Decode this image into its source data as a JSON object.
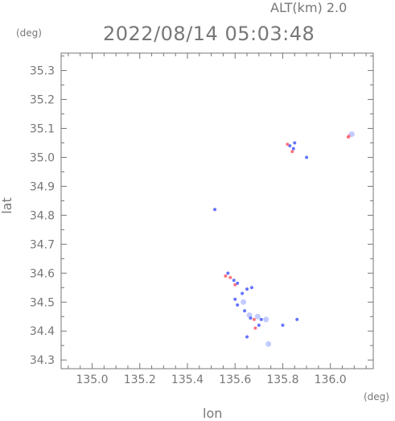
{
  "header": {
    "altitude_label": "ALT(km) 2.0",
    "datetime": "2022/08/14 05:03:48"
  },
  "colors": {
    "axis": "#777777",
    "blue_echo": "#4a5cff",
    "red_echo": "#ff5a6a",
    "light_echo": "#b9c2ff"
  },
  "chart_data": {
    "type": "scatter",
    "xlabel": "lon",
    "ylabel": "lat",
    "x_unit": "(deg)",
    "y_unit": "(deg)",
    "xlim": [
      134.87,
      136.18
    ],
    "ylim": [
      34.27,
      35.36
    ],
    "xticks": [
      135.0,
      135.2,
      135.4,
      135.6,
      135.8,
      136.0
    ],
    "xtick_labels": [
      "135.0",
      "135.2",
      "135.4",
      "135.6",
      "135.8",
      "136.0"
    ],
    "yticks": [
      34.3,
      34.4,
      34.5,
      34.6,
      34.7,
      34.8,
      34.9,
      35.0,
      35.1,
      35.2,
      35.3
    ],
    "ytick_labels": [
      "34.3",
      "34.4",
      "34.5",
      "34.6",
      "34.7",
      "34.8",
      "34.9",
      "35.0",
      "35.1",
      "35.2",
      "35.3"
    ],
    "grid": false,
    "points": [
      {
        "lon": 136.08,
        "lat": 35.075,
        "color": "red"
      },
      {
        "lon": 136.09,
        "lat": 35.08,
        "color": "light"
      },
      {
        "lon": 136.075,
        "lat": 35.07,
        "color": "red"
      },
      {
        "lon": 135.83,
        "lat": 35.04,
        "color": "blue"
      },
      {
        "lon": 135.845,
        "lat": 35.03,
        "color": "blue"
      },
      {
        "lon": 135.84,
        "lat": 35.02,
        "color": "red"
      },
      {
        "lon": 135.85,
        "lat": 35.05,
        "color": "blue"
      },
      {
        "lon": 135.9,
        "lat": 35.0,
        "color": "blue"
      },
      {
        "lon": 135.82,
        "lat": 35.045,
        "color": "red"
      },
      {
        "lon": 135.515,
        "lat": 34.82,
        "color": "blue"
      },
      {
        "lon": 135.57,
        "lat": 34.6,
        "color": "blue"
      },
      {
        "lon": 135.56,
        "lat": 34.59,
        "color": "red"
      },
      {
        "lon": 135.58,
        "lat": 34.585,
        "color": "red"
      },
      {
        "lon": 135.595,
        "lat": 34.575,
        "color": "blue"
      },
      {
        "lon": 135.6,
        "lat": 34.56,
        "color": "red"
      },
      {
        "lon": 135.61,
        "lat": 34.565,
        "color": "blue"
      },
      {
        "lon": 135.63,
        "lat": 34.53,
        "color": "blue"
      },
      {
        "lon": 135.65,
        "lat": 34.545,
        "color": "blue"
      },
      {
        "lon": 135.67,
        "lat": 34.55,
        "color": "blue"
      },
      {
        "lon": 135.6,
        "lat": 34.51,
        "color": "blue"
      },
      {
        "lon": 135.61,
        "lat": 34.49,
        "color": "blue"
      },
      {
        "lon": 135.635,
        "lat": 34.5,
        "color": "light"
      },
      {
        "lon": 135.64,
        "lat": 34.47,
        "color": "blue"
      },
      {
        "lon": 135.66,
        "lat": 34.455,
        "color": "light"
      },
      {
        "lon": 135.665,
        "lat": 34.445,
        "color": "blue"
      },
      {
        "lon": 135.68,
        "lat": 34.44,
        "color": "red"
      },
      {
        "lon": 135.695,
        "lat": 34.45,
        "color": "light"
      },
      {
        "lon": 135.71,
        "lat": 34.44,
        "color": "blue"
      },
      {
        "lon": 135.73,
        "lat": 34.44,
        "color": "light"
      },
      {
        "lon": 135.685,
        "lat": 34.41,
        "color": "red"
      },
      {
        "lon": 135.7,
        "lat": 34.42,
        "color": "blue"
      },
      {
        "lon": 135.8,
        "lat": 34.42,
        "color": "blue"
      },
      {
        "lon": 135.86,
        "lat": 34.44,
        "color": "blue"
      },
      {
        "lon": 135.65,
        "lat": 34.38,
        "color": "blue"
      },
      {
        "lon": 135.74,
        "lat": 34.355,
        "color": "light"
      }
    ]
  }
}
